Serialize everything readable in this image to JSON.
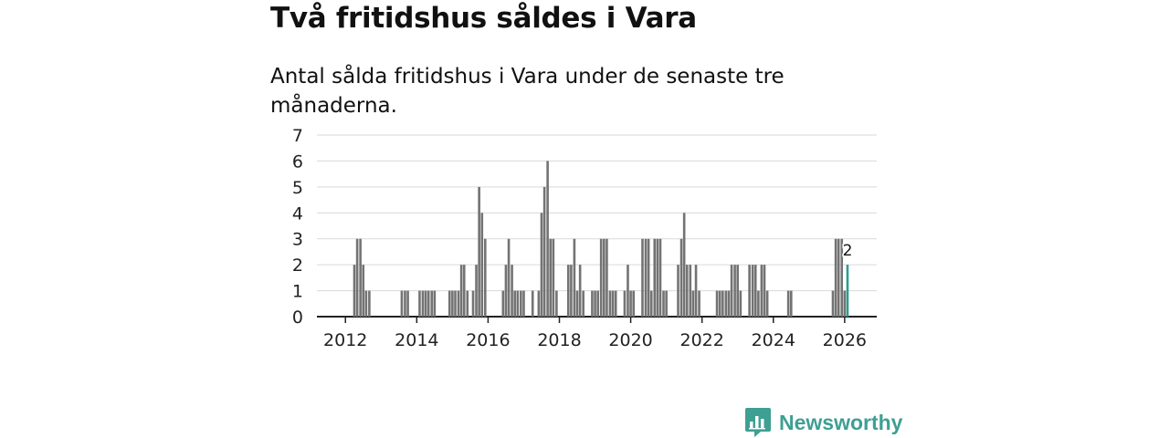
{
  "headline": "Två fritidshus såldes i Vara",
  "subtitle": "Antal sålda fritidshus i Vara under de senaste tre månaderna.",
  "brand": {
    "name": "Newsworthy",
    "color": "#3e9f93"
  },
  "colors": {
    "bar": "#737373",
    "highlight": "#2a9d8f",
    "grid": "#d9d9d9",
    "axis": "#222222"
  },
  "chart_data": {
    "type": "bar",
    "title": "Två fritidshus såldes i Vara",
    "xlabel": "",
    "ylabel": "",
    "ylim": [
      0,
      7
    ],
    "xlim": [
      2011.2,
      2026.9
    ],
    "y_ticks": [
      0,
      1,
      2,
      3,
      4,
      5,
      6,
      7
    ],
    "x_ticks": [
      2012,
      2014,
      2016,
      2018,
      2020,
      2022,
      2024,
      2026
    ],
    "grid": true,
    "highlight_label": "2",
    "series": [
      {
        "name": "Antal sålda fritidshus",
        "x": [
          2012.25,
          2012.33,
          2012.42,
          2012.5,
          2012.58,
          2012.67,
          2013.58,
          2013.67,
          2013.75,
          2014.08,
          2014.17,
          2014.25,
          2014.33,
          2014.42,
          2014.5,
          2014.92,
          2015.0,
          2015.08,
          2015.17,
          2015.25,
          2015.33,
          2015.42,
          2015.58,
          2015.67,
          2015.75,
          2015.83,
          2015.92,
          2016.42,
          2016.5,
          2016.58,
          2016.67,
          2016.75,
          2016.83,
          2016.92,
          2017.0,
          2017.25,
          2017.42,
          2017.5,
          2017.58,
          2017.67,
          2017.75,
          2017.83,
          2017.92,
          2018.25,
          2018.33,
          2018.42,
          2018.5,
          2018.58,
          2018.67,
          2018.92,
          2019.0,
          2019.08,
          2019.17,
          2019.25,
          2019.33,
          2019.42,
          2019.5,
          2019.58,
          2019.83,
          2019.92,
          2020.0,
          2020.08,
          2020.33,
          2020.42,
          2020.5,
          2020.58,
          2020.67,
          2020.75,
          2020.83,
          2020.92,
          2021.0,
          2021.33,
          2021.42,
          2021.5,
          2021.58,
          2021.67,
          2021.75,
          2021.83,
          2021.92,
          2022.42,
          2022.5,
          2022.58,
          2022.67,
          2022.75,
          2022.83,
          2022.92,
          2023.0,
          2023.08,
          2023.33,
          2023.42,
          2023.5,
          2023.58,
          2023.67,
          2023.75,
          2023.83,
          2024.42,
          2024.5,
          2025.67,
          2025.75,
          2025.83,
          2025.92,
          2026.0,
          2026.08
        ],
        "values": [
          2,
          3,
          3,
          2,
          1,
          1,
          1,
          1,
          1,
          1,
          1,
          1,
          1,
          1,
          1,
          1,
          1,
          1,
          1,
          2,
          2,
          1,
          1,
          2,
          5,
          4,
          3,
          1,
          2,
          3,
          2,
          1,
          1,
          1,
          1,
          1,
          1,
          4,
          5,
          6,
          3,
          3,
          1,
          2,
          2,
          3,
          1,
          2,
          1,
          1,
          1,
          1,
          3,
          3,
          3,
          1,
          1,
          1,
          1,
          2,
          1,
          1,
          3,
          3,
          3,
          1,
          3,
          3,
          3,
          1,
          1,
          2,
          3,
          4,
          2,
          2,
          1,
          2,
          1,
          1,
          1,
          1,
          1,
          1,
          2,
          2,
          2,
          1,
          2,
          2,
          2,
          1,
          2,
          2,
          1,
          1,
          1,
          1,
          3,
          3,
          3,
          1,
          2
        ]
      }
    ]
  }
}
